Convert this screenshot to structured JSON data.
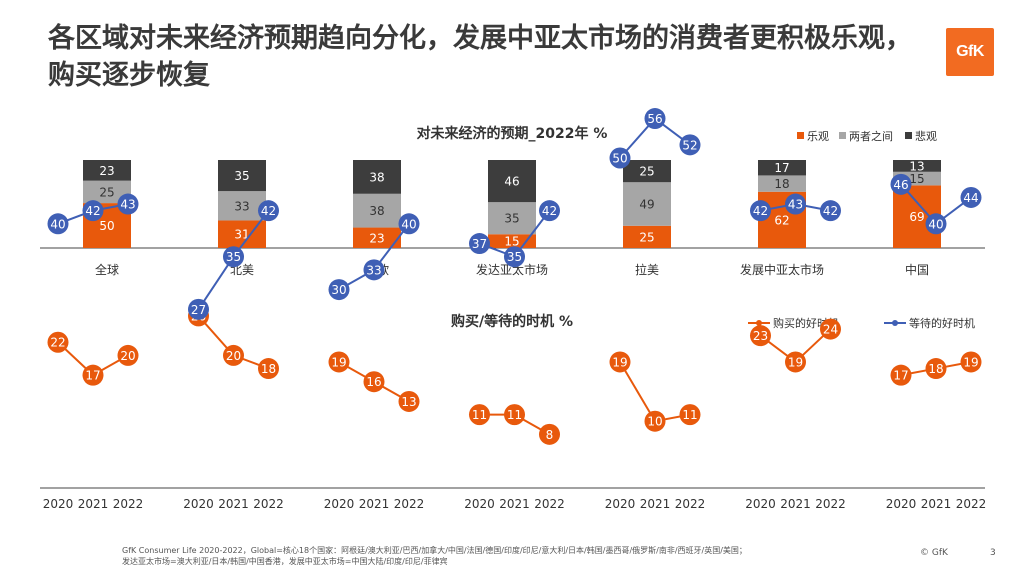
{
  "title": "各区域对未来经济预期趋向分化，发展中亚太市场的消费者更积极乐观，购买逐步恢复",
  "logo_text": "GfK",
  "footnote_line1": "GfK Consumer Life 2020-2022，Global=核心18个国家：阿根廷/澳大利亚/巴西/加拿大/中国/法国/德国/印度/印尼/意大利/日本/韩国/墨西哥/俄罗斯/南非/西班牙/英国/美国；",
  "footnote_line2": "发达亚太市场=澳大利亚/日本/韩国/中国香港，发展中亚太市场=中国大陆/印度/印尼/菲律宾",
  "copyright": "© GfK",
  "page_number": "3",
  "colors": {
    "optimistic": "#e8590c",
    "neutral": "#a6a6a6",
    "pessimistic": "#3d3d3d",
    "buy": "#e8590c",
    "wait": "#3f5fb5"
  },
  "chart_data": [
    {
      "type": "bar",
      "stacked": true,
      "title": "对未来经济的预期_2022年 %",
      "legend_position": "top-right",
      "categories": [
        "全球",
        "北美",
        "西欧",
        "发达亚太市场",
        "拉美",
        "发展中亚太市场",
        "中国"
      ],
      "series": [
        {
          "name": "乐观",
          "values": [
            50,
            31,
            23,
            15,
            25,
            62,
            69
          ]
        },
        {
          "name": "两者之间",
          "values": [
            25,
            33,
            38,
            35,
            49,
            18,
            15
          ]
        },
        {
          "name": "悲观",
          "values": [
            23,
            35,
            38,
            46,
            25,
            17,
            13
          ]
        }
      ]
    },
    {
      "type": "line",
      "title": "购买/等待的时机 %",
      "legend_position": "top-right",
      "x": [
        "2020",
        "2021",
        "2022"
      ],
      "groups": [
        {
          "series": [
            {
              "name": "购买的好时机",
              "values": [
                22,
                17,
                20
              ]
            },
            {
              "name": "等待的好时机",
              "values": [
                40,
                42,
                43
              ]
            }
          ]
        },
        {
          "series": [
            {
              "name": "购买的好时机",
              "values": [
                26,
                20,
                18
              ]
            },
            {
              "name": "等待的好时机",
              "values": [
                27,
                35,
                42
              ]
            }
          ]
        },
        {
          "series": [
            {
              "name": "购买的好时机",
              "values": [
                19,
                16,
                13
              ]
            },
            {
              "name": "等待的好时机",
              "values": [
                30,
                33,
                40
              ]
            }
          ]
        },
        {
          "series": [
            {
              "name": "购买的好时机",
              "values": [
                11,
                11,
                8
              ]
            },
            {
              "name": "等待的好时机",
              "values": [
                37,
                35,
                42
              ]
            }
          ]
        },
        {
          "series": [
            {
              "name": "购买的好时机",
              "values": [
                19,
                10,
                11
              ]
            },
            {
              "name": "等待的好时机",
              "values": [
                50,
                56,
                52
              ]
            }
          ]
        },
        {
          "series": [
            {
              "name": "购买的好时机",
              "values": [
                23,
                19,
                24
              ]
            },
            {
              "name": "等待的好时机",
              "values": [
                42,
                43,
                42
              ]
            }
          ]
        },
        {
          "series": [
            {
              "name": "购买的好时机",
              "values": [
                17,
                18,
                19
              ]
            },
            {
              "name": "等待的好时机",
              "values": [
                46,
                40,
                44
              ]
            }
          ]
        }
      ]
    }
  ]
}
